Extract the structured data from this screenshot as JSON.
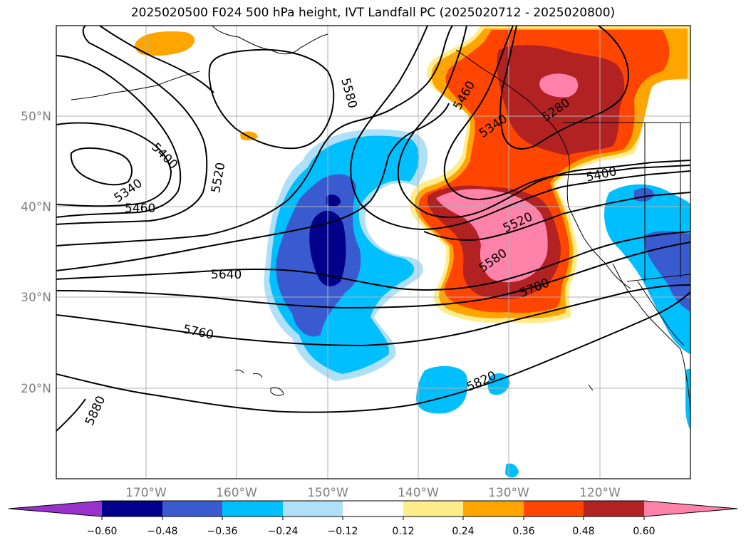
{
  "title": "2025020500 F024 500 hPa height, IVT Landfall PC (2025020712 - 2025020800)",
  "colors": {
    "c_n60": "#9932cc",
    "c_n48": "#00008b",
    "c_n36": "#3a5bcf",
    "c_n24": "#00bfff",
    "c_n12": "#b0e0f8",
    "c_0": "#ffffff",
    "c_p12": "#ffec8b",
    "c_p24": "#ffa500",
    "c_p36": "#ff4500",
    "c_p48": "#b22222",
    "c_p60": "#ff82ab",
    "grid": "#b0b0b0",
    "contour": "#000000",
    "coast": "#000000"
  },
  "axes": {
    "lat_labels": [
      {
        "text": "50°N",
        "lat": 50
      },
      {
        "text": "40°N",
        "lat": 40
      },
      {
        "text": "30°N",
        "lat": 30
      },
      {
        "text": "20°N",
        "lat": 20
      }
    ],
    "lon_labels": [
      {
        "text": "170°W",
        "lon": -170
      },
      {
        "text": "160°W",
        "lon": -160
      },
      {
        "text": "150°W",
        "lon": -150
      },
      {
        "text": "140°W",
        "lon": -140
      },
      {
        "text": "130°W",
        "lon": -130
      },
      {
        "text": "120°W",
        "lon": -120
      }
    ]
  },
  "contour_labels": [
    "5580",
    "5400",
    "5340",
    "5460",
    "5520",
    "5460",
    "5340",
    "5280",
    "5400",
    "5520",
    "5580",
    "5640",
    "5700",
    "5760",
    "5820",
    "5880"
  ],
  "colorbar": {
    "ticks": [
      "−0.60",
      "−0.48",
      "−0.36",
      "−0.24",
      "−0.12",
      "0.12",
      "0.24",
      "0.36",
      "0.48",
      "0.60"
    ],
    "extend": "both"
  }
}
